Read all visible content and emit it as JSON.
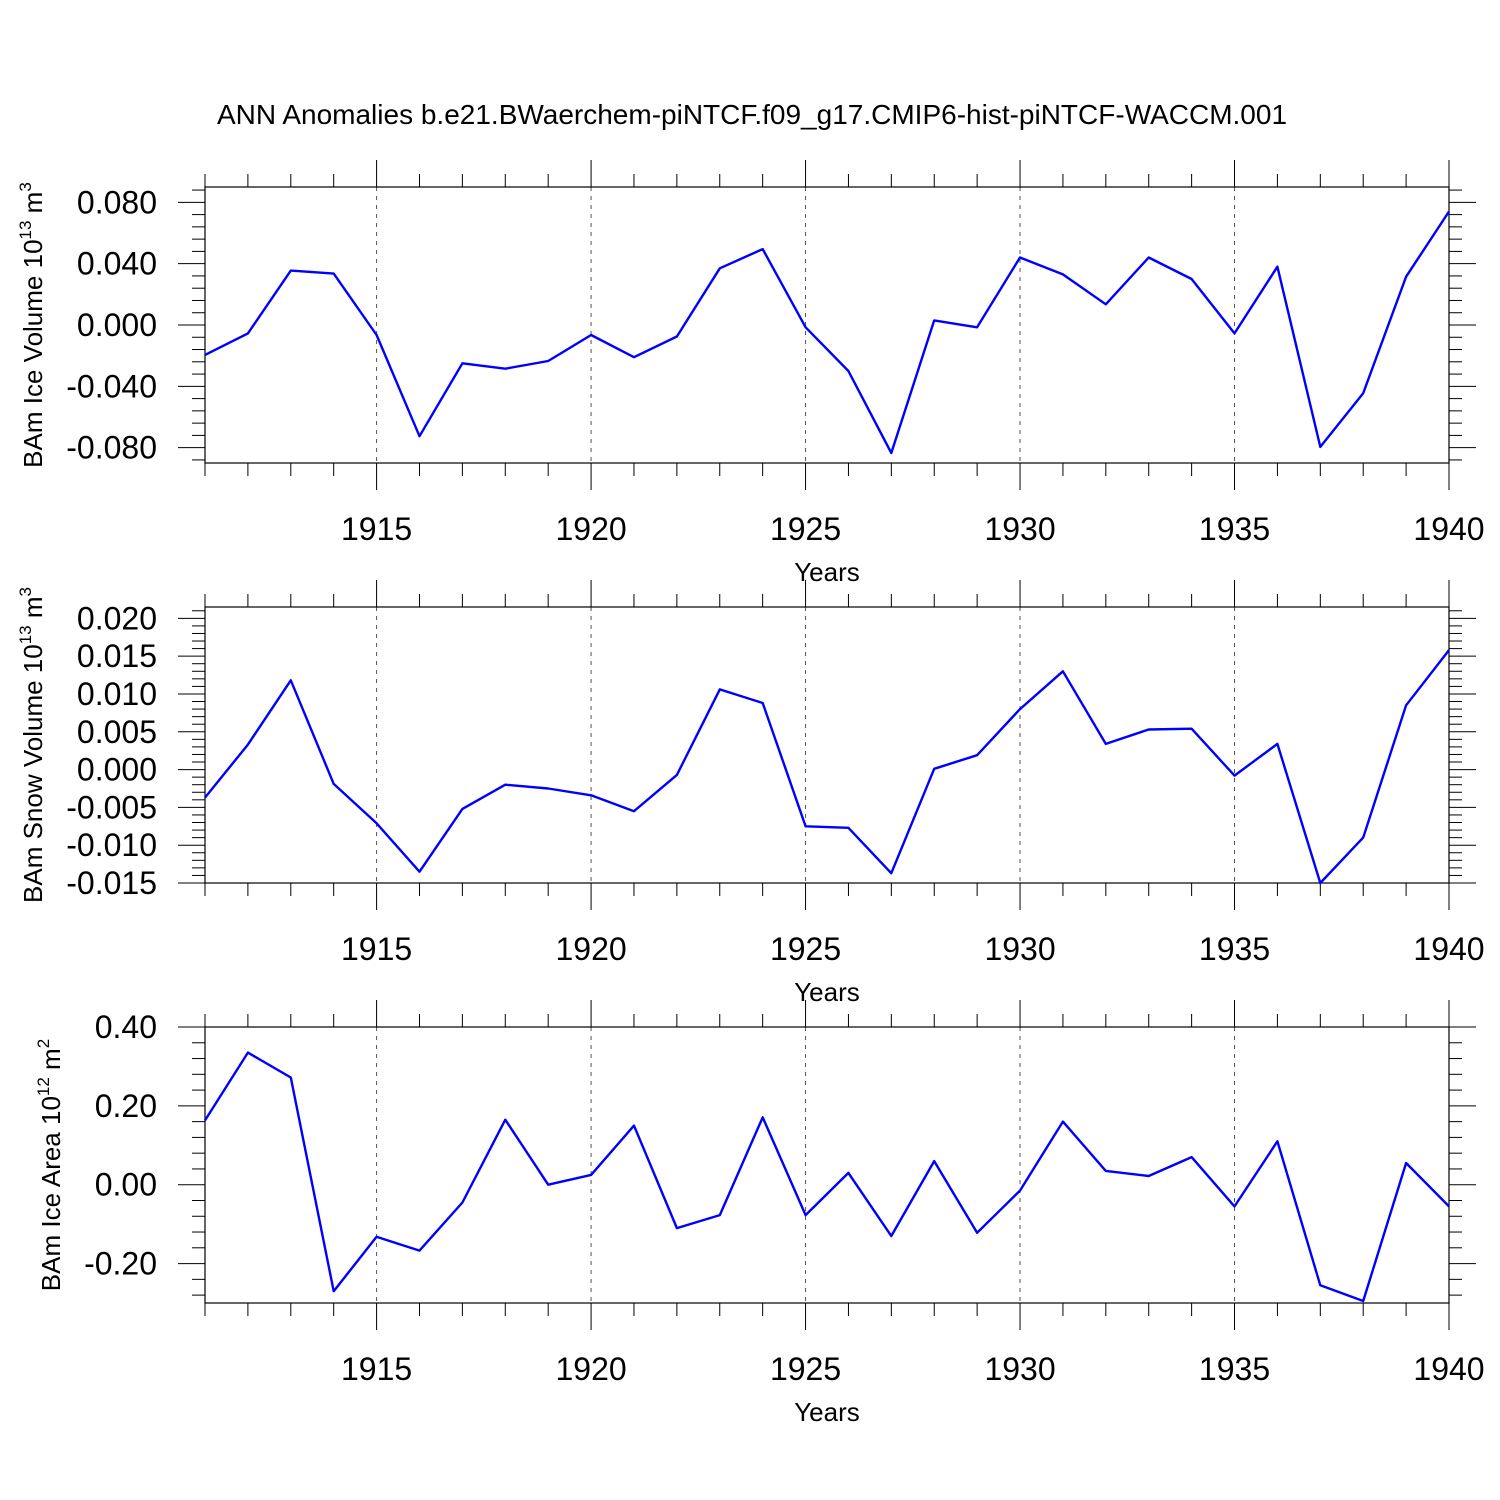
{
  "title": "ANN Anomalies b.e21.BWaerchem-piNTCF.f09_g17.CMIP6-hist-piNTCF-WACCM.001",
  "colors": {
    "series": "#0000ff",
    "axes": "#000000",
    "grid": "#555555"
  },
  "chart_data": [
    {
      "type": "line",
      "ylabel": "BAm Ice Volume 10",
      "ylabel_exp": "13",
      "ylabel_unit": "m",
      "ylabel_unit_exp": "3",
      "xlabel": "Years",
      "xlim": [
        1911,
        1940
      ],
      "ylim": [
        -0.09,
        0.09
      ],
      "xticks": [
        1915,
        1920,
        1925,
        1930,
        1935,
        1940
      ],
      "yticks": [
        0.08,
        0.04,
        0.0,
        -0.04,
        -0.08
      ],
      "ytick_labels": [
        "0.080",
        "0.040",
        "0.000",
        "-0.040",
        "-0.080"
      ],
      "x": [
        1911,
        1912,
        1913,
        1914,
        1915,
        1916,
        1917,
        1918,
        1919,
        1920,
        1921,
        1922,
        1923,
        1924,
        1925,
        1926,
        1927,
        1928,
        1929,
        1930,
        1931,
        1932,
        1933,
        1934,
        1935,
        1936,
        1937,
        1938,
        1939,
        1940
      ],
      "values": [
        -0.0195,
        -0.0055,
        0.0355,
        0.0335,
        -0.0065,
        -0.0725,
        -0.025,
        -0.0285,
        -0.0235,
        -0.0065,
        -0.021,
        -0.0075,
        0.037,
        0.0495,
        -0.0015,
        -0.03,
        -0.0835,
        0.003,
        -0.0015,
        0.044,
        0.033,
        0.0135,
        0.044,
        0.03,
        -0.0055,
        0.038,
        -0.0795,
        -0.0445,
        0.0315,
        0.074
      ]
    },
    {
      "type": "line",
      "ylabel": "BAm Snow Volume 10",
      "ylabel_exp": "13",
      "ylabel_unit": "m",
      "ylabel_unit_exp": "3",
      "xlabel": "Years",
      "xlim": [
        1911,
        1940
      ],
      "ylim": [
        -0.015,
        0.0215
      ],
      "xticks": [
        1915,
        1920,
        1925,
        1930,
        1935,
        1940
      ],
      "yticks": [
        0.02,
        0.015,
        0.01,
        0.005,
        0.0,
        -0.005,
        -0.01,
        -0.015
      ],
      "ytick_labels": [
        "0.020",
        "0.015",
        "0.010",
        "0.005",
        "0.000",
        "-0.005",
        "-0.010",
        "-0.015"
      ],
      "x": [
        1911,
        1912,
        1913,
        1914,
        1915,
        1916,
        1917,
        1918,
        1919,
        1920,
        1921,
        1922,
        1923,
        1924,
        1925,
        1926,
        1927,
        1928,
        1929,
        1930,
        1931,
        1932,
        1933,
        1934,
        1935,
        1936,
        1937,
        1938,
        1939,
        1940
      ],
      "values": [
        -0.0037,
        0.0033,
        0.0118,
        -0.0019,
        -0.0071,
        -0.0135,
        -0.0052,
        -0.002,
        -0.0025,
        -0.0034,
        -0.0055,
        -0.0007,
        0.0106,
        0.0088,
        -0.0075,
        -0.0077,
        -0.0137,
        0.0001,
        0.0019,
        0.008,
        0.013,
        0.0034,
        0.0053,
        0.0054,
        -0.0008,
        0.0034,
        -0.015,
        -0.009,
        0.0085,
        0.0158
      ]
    },
    {
      "type": "line",
      "ylabel": "BAm Ice Area 10",
      "ylabel_exp": "12",
      "ylabel_unit": "m",
      "ylabel_unit_exp": "2",
      "xlabel": "Years",
      "xlim": [
        1911,
        1940
      ],
      "ylim": [
        -0.3,
        0.4
      ],
      "xticks": [
        1915,
        1920,
        1925,
        1930,
        1935,
        1940
      ],
      "yticks": [
        0.4,
        0.2,
        0.0,
        -0.2
      ],
      "ytick_labels": [
        "0.40",
        "0.20",
        "0.00",
        "-0.20"
      ],
      "x": [
        1911,
        1912,
        1913,
        1914,
        1915,
        1916,
        1917,
        1918,
        1919,
        1920,
        1921,
        1922,
        1923,
        1924,
        1925,
        1926,
        1927,
        1928,
        1929,
        1930,
        1931,
        1932,
        1933,
        1934,
        1935,
        1936,
        1937,
        1938,
        1939,
        1940
      ],
      "values": [
        0.163,
        0.335,
        0.272,
        -0.27,
        -0.132,
        -0.167,
        -0.045,
        0.165,
        0.0,
        0.025,
        0.15,
        -0.11,
        -0.077,
        0.171,
        -0.077,
        0.03,
        -0.13,
        0.06,
        -0.122,
        -0.015,
        0.16,
        0.035,
        0.022,
        0.07,
        -0.055,
        0.11,
        -0.255,
        -0.295,
        0.055,
        -0.055
      ]
    }
  ]
}
